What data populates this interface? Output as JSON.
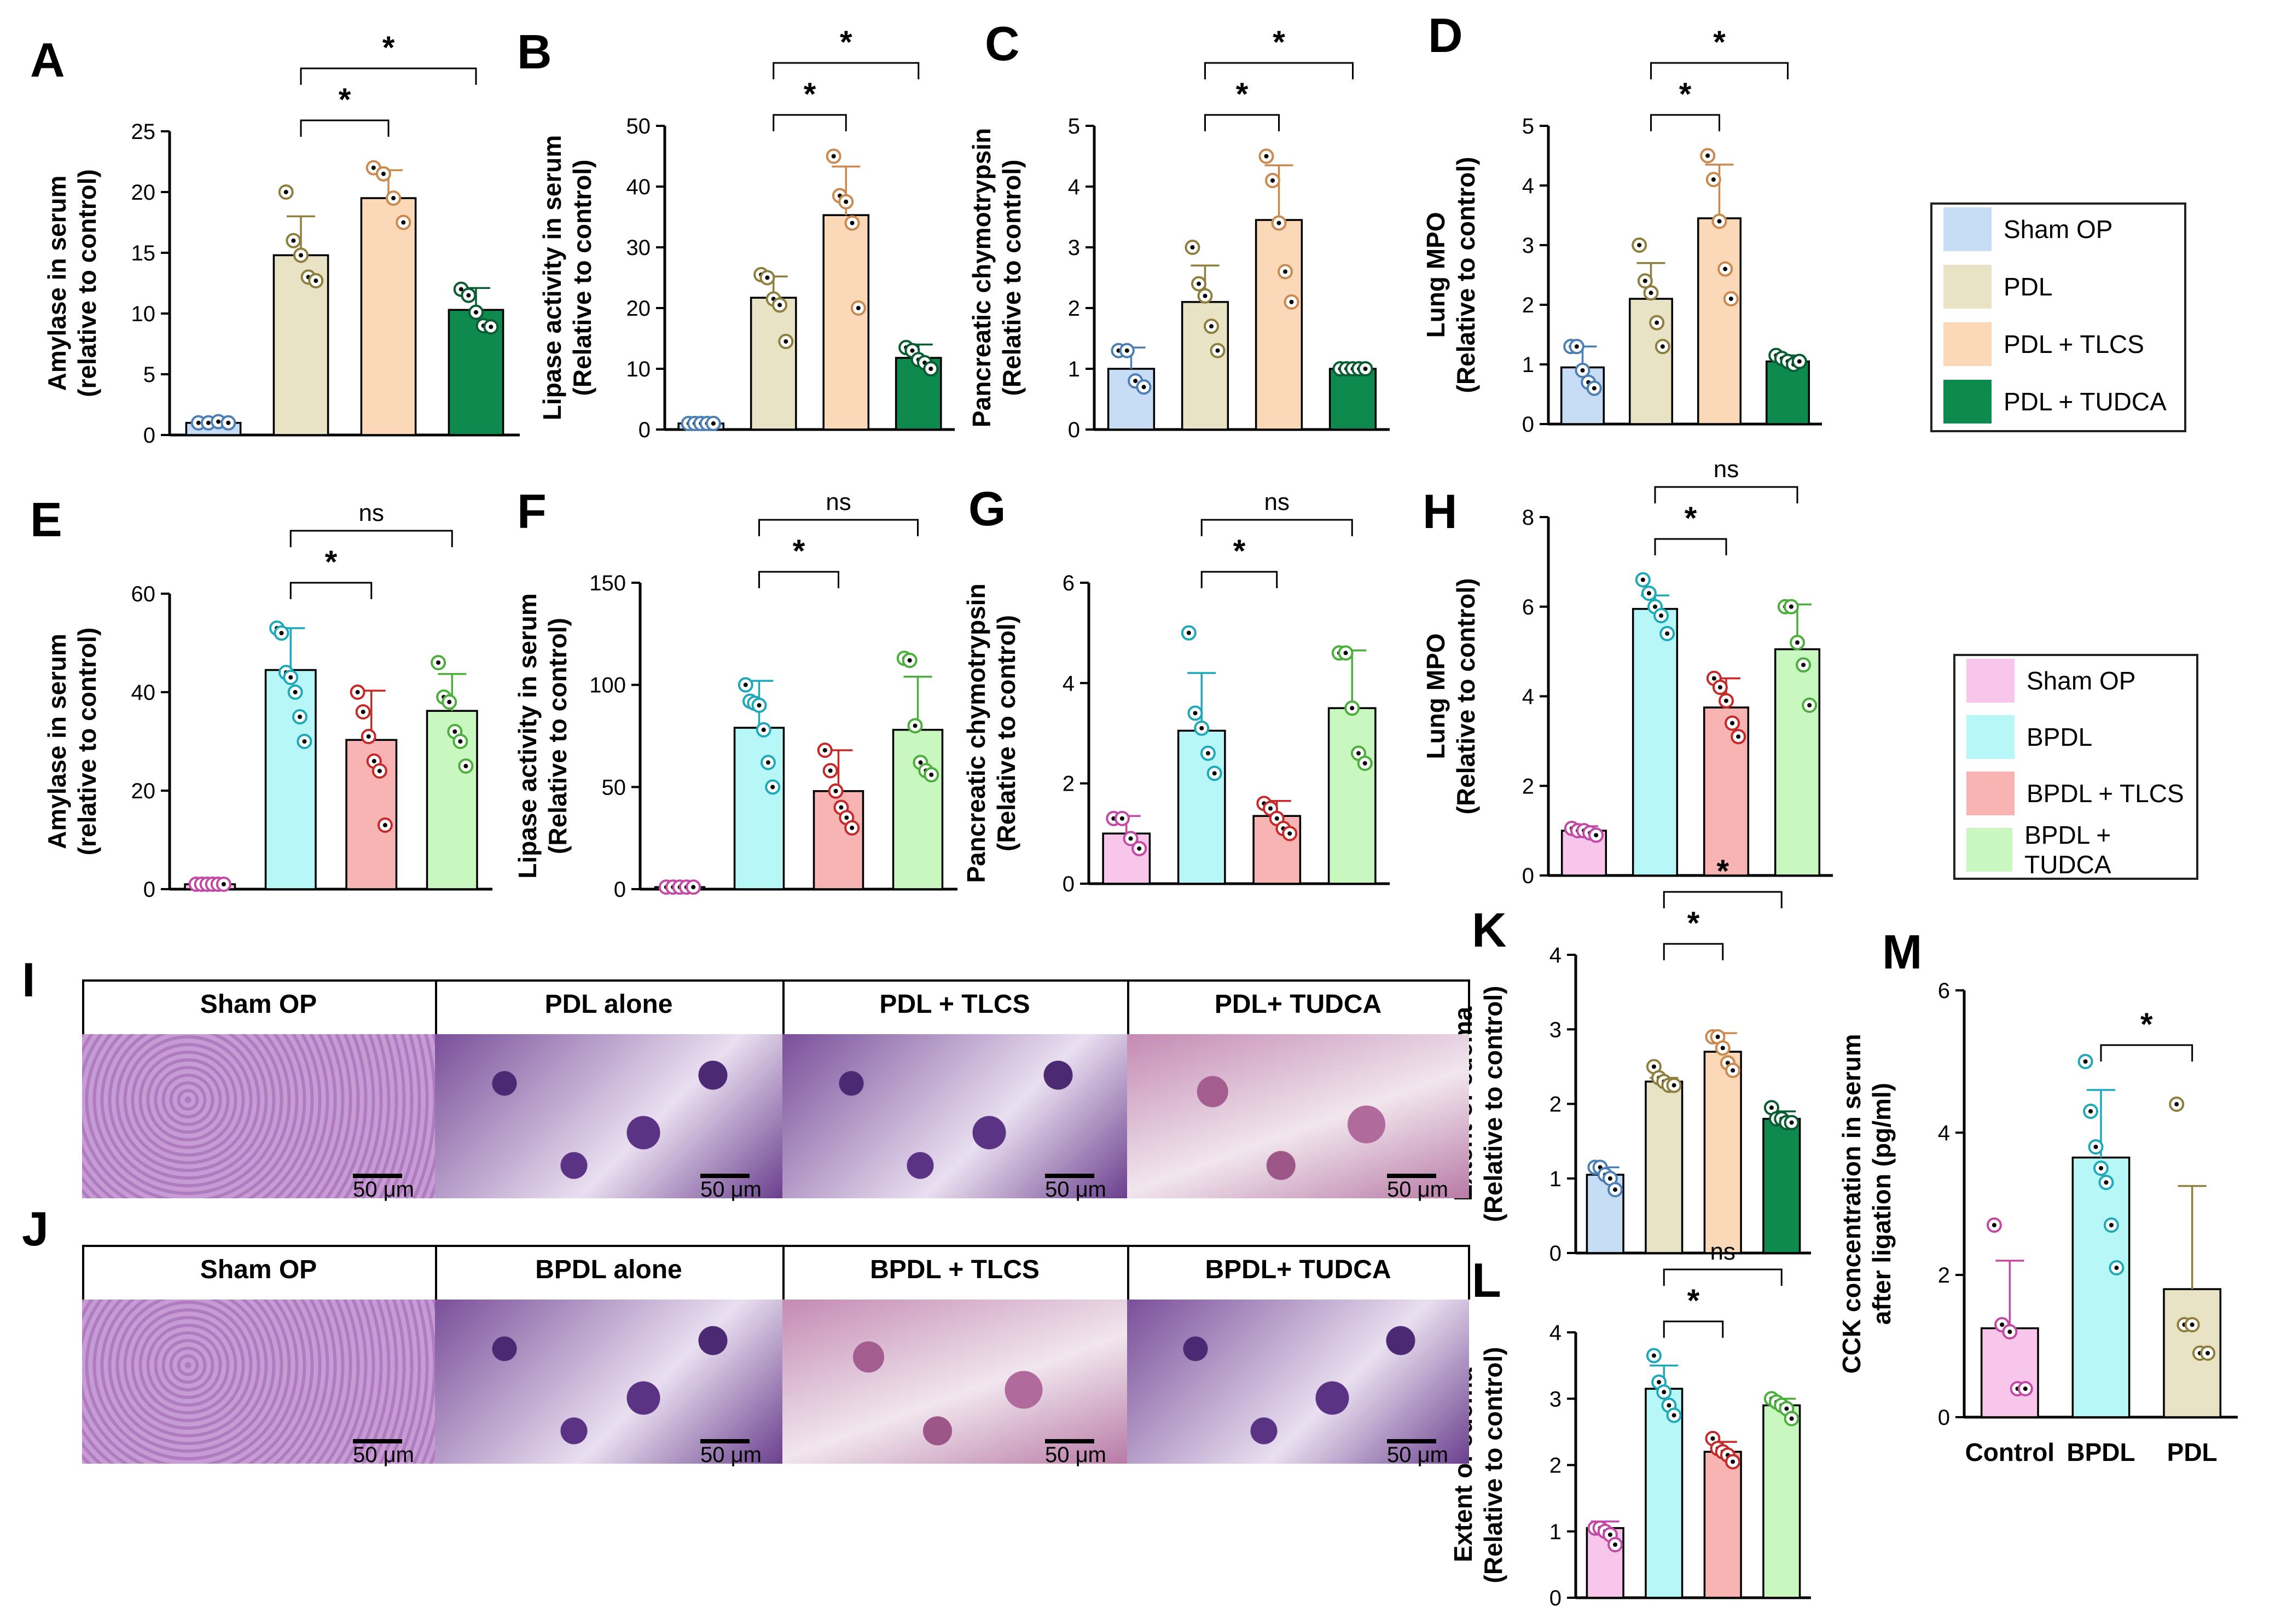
{
  "colors": {
    "sham_pdl": "#c7dcf5",
    "pdl": "#e8e3c4",
    "pdl_tlcs": "#fbd9b8",
    "pdl_tudca": "#0e8a4f",
    "sham_bpdl": "#f7c6ea",
    "bpdl": "#b8f7f7",
    "bpdl_tlcs": "#f8b3b3",
    "bpdl_tudca": "#c9f7c0",
    "dot_sham_pdl": "#4d7fb5",
    "dot_pdl": "#8f7f3f",
    "dot_pdl_tlcs": "#c9894f",
    "dot_pdl_tudca": "#0a5c33",
    "dot_sham_bpdl": "#c24aa5",
    "dot_bpdl": "#1fa8b8",
    "dot_bpdl_tlcs": "#c52a2a",
    "dot_bpdl_tudca": "#4cae3c"
  },
  "legends": {
    "top": [
      {
        "label": "Sham OP",
        "color": "#c7dcf5"
      },
      {
        "label": "PDL",
        "color": "#e8e3c4"
      },
      {
        "label": "PDL + TLCS",
        "color": "#fbd9b8"
      },
      {
        "label": "PDL + TUDCA",
        "color": "#0e8a4f"
      }
    ],
    "bottom": [
      {
        "label": "Sham OP",
        "color": "#f7c6ea"
      },
      {
        "label": "BPDL",
        "color": "#b8f7f7"
      },
      {
        "label": "BPDL + TLCS",
        "color": "#f8b3b3"
      },
      {
        "label": "BPDL + TUDCA",
        "color": "#c9f7c0"
      }
    ]
  },
  "histology": {
    "row_I": {
      "letter": "I",
      "labels": [
        "Sham OP",
        "PDL alone",
        "PDL + TLCS",
        "PDL+ TUDCA"
      ],
      "scale": "50 μm"
    },
    "row_J": {
      "letter": "J",
      "labels": [
        "Sham OP",
        "BPDL alone",
        "BPDL + TLCS",
        "BPDL+ TUDCA"
      ],
      "scale": "50 μm"
    }
  },
  "chart_data": [
    {
      "id": "A",
      "type": "bar",
      "ylabel": [
        "Amylase in serum",
        "(relative to control)"
      ],
      "ylim": [
        0,
        25
      ],
      "ticks": [
        0,
        5,
        10,
        15,
        20,
        25
      ],
      "groups": [
        "sham_pdl",
        "pdl",
        "pdl_tlcs",
        "pdl_tudca"
      ],
      "values": [
        1,
        14.8,
        19.5,
        10.3
      ],
      "sd": [
        0.2,
        3.2,
        2.3,
        1.8
      ],
      "points": [
        [
          1,
          1,
          1.1,
          1
        ],
        [
          20,
          16,
          14.8,
          13,
          12.7
        ],
        [
          22,
          21.5,
          19.5,
          17.5
        ],
        [
          12,
          11.5,
          10.1,
          9,
          8.9
        ]
      ],
      "sig": [
        {
          "from": 1,
          "to": 2,
          "label": "*",
          "level": 1
        },
        {
          "from": 1,
          "to": 3,
          "label": "*",
          "level": 2
        }
      ]
    },
    {
      "id": "B",
      "type": "bar",
      "ylabel": [
        "Lipase activity in serum",
        "(Relative to control)"
      ],
      "ylim": [
        0,
        50
      ],
      "ticks": [
        0,
        10,
        20,
        30,
        40,
        50
      ],
      "groups": [
        "sham_pdl",
        "pdl",
        "pdl_tlcs",
        "pdl_tudca"
      ],
      "values": [
        1,
        21.7,
        35.3,
        11.8
      ],
      "sd": [
        0.2,
        3.5,
        8,
        2.2
      ],
      "points": [
        [
          1,
          1,
          1,
          1,
          1
        ],
        [
          25.5,
          25,
          21.5,
          20.5,
          14.5
        ],
        [
          45,
          38.5,
          37.5,
          34,
          20
        ],
        [
          13.5,
          13,
          11.5,
          11,
          10
        ]
      ],
      "sig": [
        {
          "from": 1,
          "to": 2,
          "label": "*",
          "level": 1
        },
        {
          "from": 1,
          "to": 3,
          "label": "*",
          "level": 2
        }
      ]
    },
    {
      "id": "C",
      "type": "bar",
      "ylabel": [
        "Pancreatic chymotrypsin",
        "(Relative to control)"
      ],
      "ylim": [
        0,
        5
      ],
      "ticks": [
        0,
        1,
        2,
        3,
        4,
        5
      ],
      "groups": [
        "sham_pdl",
        "pdl",
        "pdl_tlcs",
        "pdl_tudca"
      ],
      "values": [
        1,
        2.1,
        3.45,
        1
      ],
      "sd": [
        0.35,
        0.6,
        0.9,
        0.05
      ],
      "points": [
        [
          1.3,
          1.3,
          0.8,
          0.7
        ],
        [
          3,
          2.4,
          2.2,
          1.7,
          1.3
        ],
        [
          4.5,
          4.1,
          3.4,
          2.6,
          2.1
        ],
        [
          1,
          1,
          1,
          1,
          1
        ]
      ],
      "sig": [
        {
          "from": 1,
          "to": 2,
          "label": "*",
          "level": 1
        },
        {
          "from": 1,
          "to": 3,
          "label": "*",
          "level": 2
        }
      ]
    },
    {
      "id": "D",
      "type": "bar",
      "ylabel": [
        "Lung MPO",
        "(Relative to control)"
      ],
      "ylim": [
        0,
        5
      ],
      "ticks": [
        0,
        1,
        2,
        3,
        4,
        5
      ],
      "groups": [
        "sham_pdl",
        "pdl",
        "pdl_tlcs",
        "pdl_tudca"
      ],
      "values": [
        0.95,
        2.1,
        3.45,
        1.05
      ],
      "sd": [
        0.35,
        0.6,
        0.9,
        0.1
      ],
      "points": [
        [
          1.3,
          1.3,
          0.9,
          0.7,
          0.6
        ],
        [
          3,
          2.4,
          2.2,
          1.7,
          1.3
        ],
        [
          4.5,
          4.1,
          3.4,
          2.6,
          2.1
        ],
        [
          1.15,
          1.1,
          1.05,
          1.0,
          1.05
        ]
      ],
      "sig": [
        {
          "from": 1,
          "to": 2,
          "label": "*",
          "level": 1
        },
        {
          "from": 1,
          "to": 3,
          "label": "*",
          "level": 2
        }
      ]
    },
    {
      "id": "E",
      "type": "bar",
      "ylabel": [
        "Amylase in serum",
        "(relative to control)"
      ],
      "ylim": [
        0,
        60
      ],
      "ticks": [
        0,
        20,
        40,
        60
      ],
      "groups": [
        "sham_bpdl",
        "bpdl",
        "bpdl_tlcs",
        "bpdl_tudca"
      ],
      "values": [
        1,
        44.5,
        30.3,
        36.2
      ],
      "sd": [
        0.3,
        8.5,
        10,
        7.5
      ],
      "points": [
        [
          1,
          1,
          1,
          1,
          1,
          1
        ],
        [
          53,
          52,
          44,
          43,
          40,
          35,
          30
        ],
        [
          40,
          36,
          31,
          26,
          24,
          13
        ],
        [
          46,
          39,
          38,
          32,
          30,
          25
        ]
      ],
      "sig": [
        {
          "from": 1,
          "to": 2,
          "label": "*",
          "level": 1
        },
        {
          "from": 1,
          "to": 3,
          "label": "ns",
          "level": 2
        }
      ]
    },
    {
      "id": "F",
      "type": "bar",
      "ylabel": [
        "Lipase activity in serum",
        "(Relative to control)"
      ],
      "ylim": [
        0,
        150
      ],
      "ticks": [
        0,
        50,
        100,
        150
      ],
      "groups": [
        "sham_bpdl",
        "bpdl",
        "bpdl_tlcs",
        "bpdl_tudca"
      ],
      "values": [
        1,
        79,
        48,
        78
      ],
      "sd": [
        0.5,
        23,
        20,
        26
      ],
      "points": [
        [
          1,
          1,
          1,
          1,
          1
        ],
        [
          100,
          92,
          91,
          90,
          78,
          62,
          50
        ],
        [
          68,
          58,
          48,
          40,
          35,
          30
        ],
        [
          113,
          112,
          80,
          62,
          58,
          56
        ]
      ],
      "sig": [
        {
          "from": 1,
          "to": 2,
          "label": "*",
          "level": 1
        },
        {
          "from": 1,
          "to": 3,
          "label": "ns",
          "level": 2
        }
      ]
    },
    {
      "id": "G",
      "type": "bar",
      "ylabel": [
        "Pancreatic chymotrypsin",
        "(Relative to control)"
      ],
      "ylim": [
        0,
        6
      ],
      "ticks": [
        0,
        2,
        4,
        6
      ],
      "groups": [
        "sham_bpdl",
        "bpdl",
        "bpdl_tlcs",
        "bpdl_tudca"
      ],
      "values": [
        1,
        3.05,
        1.35,
        3.5
      ],
      "sd": [
        0.35,
        1.15,
        0.3,
        1.15
      ],
      "points": [
        [
          1.3,
          1.3,
          0.9,
          0.7
        ],
        [
          5,
          3.4,
          3.1,
          2.6,
          2.2
        ],
        [
          1.6,
          1.5,
          1.3,
          1.1,
          1.0
        ],
        [
          4.6,
          4.6,
          3.5,
          2.6,
          2.4
        ]
      ],
      "sig": [
        {
          "from": 1,
          "to": 2,
          "label": "*",
          "level": 1
        },
        {
          "from": 1,
          "to": 3,
          "label": "ns",
          "level": 2
        }
      ]
    },
    {
      "id": "H",
      "type": "bar",
      "ylabel": [
        "Lung MPO",
        "(Relative to control)"
      ],
      "ylim": [
        0,
        8
      ],
      "ticks": [
        0,
        2,
        4,
        6,
        8
      ],
      "groups": [
        "sham_bpdl",
        "bpdl",
        "bpdl_tlcs",
        "bpdl_tudca"
      ],
      "values": [
        1,
        5.95,
        3.75,
        5.05
      ],
      "sd": [
        0.1,
        0.3,
        0.65,
        1.0
      ],
      "points": [
        [
          1.05,
          1.0,
          1.0,
          0.95,
          0.9
        ],
        [
          6.6,
          6.3,
          6.0,
          5.8,
          5.4
        ],
        [
          4.4,
          4.2,
          3.9,
          3.4,
          3.1
        ],
        [
          6.0,
          6.0,
          5.2,
          4.7,
          3.8
        ]
      ],
      "sig": [
        {
          "from": 1,
          "to": 2,
          "label": "*",
          "level": 1
        },
        {
          "from": 1,
          "to": 3,
          "label": "ns",
          "level": 2
        }
      ]
    },
    {
      "id": "K",
      "type": "bar",
      "ylabel": [
        "Extent of edema",
        "(Relative to control)"
      ],
      "ylim": [
        0,
        4
      ],
      "ticks": [
        0,
        1,
        2,
        3,
        4
      ],
      "groups": [
        "sham_pdl",
        "pdl",
        "pdl_tlcs",
        "pdl_tudca"
      ],
      "values": [
        1.05,
        2.3,
        2.7,
        1.8
      ],
      "sd": [
        0.1,
        0.05,
        0.25,
        0.1
      ],
      "points": [
        [
          1.15,
          1.15,
          1.05,
          1.0,
          0.85
        ],
        [
          2.5,
          2.35,
          2.3,
          2.25,
          2.25
        ],
        [
          2.9,
          2.9,
          2.75,
          2.55,
          2.45
        ],
        [
          1.95,
          1.8,
          1.8,
          1.75,
          1.75
        ]
      ],
      "sig": [
        {
          "from": 1,
          "to": 2,
          "label": "*",
          "level": 1
        },
        {
          "from": 1,
          "to": 3,
          "label": "*",
          "level": 2
        }
      ]
    },
    {
      "id": "L",
      "type": "bar",
      "ylabel": [
        "Extent of edema",
        "(Relative to control)"
      ],
      "ylim": [
        0,
        4
      ],
      "ticks": [
        0,
        1,
        2,
        3,
        4
      ],
      "groups": [
        "sham_bpdl",
        "bpdl",
        "bpdl_tlcs",
        "bpdl_tudca"
      ],
      "values": [
        1.05,
        3.15,
        2.2,
        2.9
      ],
      "sd": [
        0.1,
        0.35,
        0.15,
        0.1
      ],
      "points": [
        [
          1.05,
          1.05,
          1.0,
          0.95,
          0.8
        ],
        [
          3.65,
          3.25,
          3.1,
          2.9,
          2.75
        ],
        [
          2.4,
          2.25,
          2.2,
          2.15,
          2.05
        ],
        [
          3.0,
          2.95,
          2.9,
          2.85,
          2.7
        ]
      ],
      "sig": [
        {
          "from": 1,
          "to": 2,
          "label": "*",
          "level": 1
        },
        {
          "from": 1,
          "to": 3,
          "label": "ns",
          "level": 2
        }
      ]
    },
    {
      "id": "M",
      "type": "bar",
      "ylabel": [
        "CCK concentration in serum",
        "after ligation (pg/ml)"
      ],
      "ylim": [
        0,
        6
      ],
      "ticks": [
        0,
        2,
        4,
        6
      ],
      "categories": [
        "Control",
        "BPDL",
        "PDL"
      ],
      "groups": [
        "sham_bpdl",
        "bpdl",
        "pdl"
      ],
      "values": [
        1.25,
        3.65,
        1.8
      ],
      "sd": [
        0.95,
        0.95,
        1.45
      ],
      "points": [
        [
          2.7,
          1.3,
          1.2,
          0.4,
          0.4
        ],
        [
          5.0,
          4.3,
          3.8,
          3.5,
          3.3,
          2.7,
          2.1
        ],
        [
          4.4,
          1.3,
          1.3,
          0.9,
          0.9
        ]
      ],
      "sig": [
        {
          "from": 1,
          "to": 2,
          "label": "*",
          "level": 1
        }
      ]
    }
  ]
}
